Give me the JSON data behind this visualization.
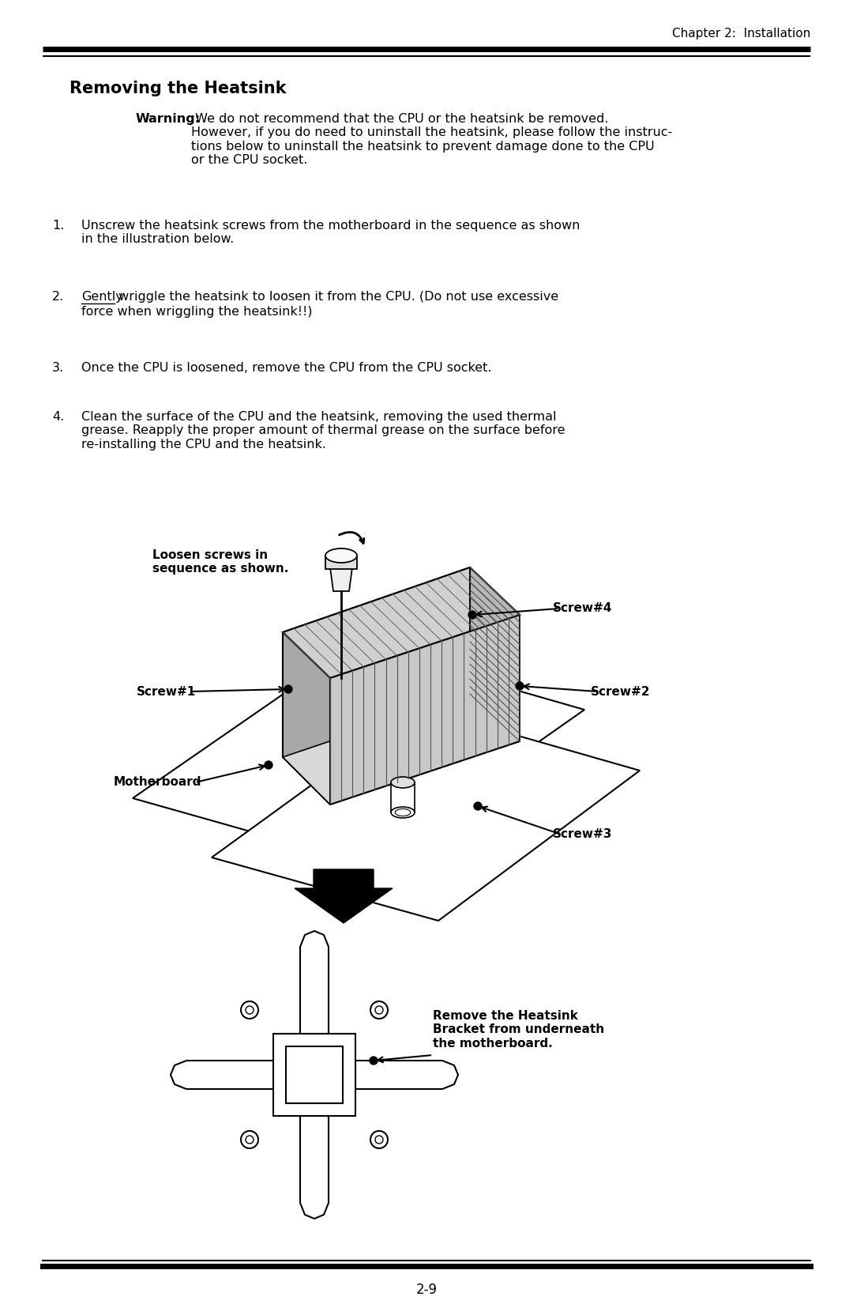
{
  "page_title": "Chapter 2:  Installation",
  "section_title": "Removing the Heatsink",
  "warning_label": "Warning:",
  "warning_text": " We do not recommend that the CPU or the heatsink be removed.\nHowever, if you do need to uninstall the heatsink, please follow the instruc-\ntions below to uninstall the heatsink to prevent damage done to the CPU\nor the CPU socket.",
  "steps": [
    "Unscrew the heatsink screws from the motherboard in the sequence as shown\nin the illustration below.",
    "Gently wriggle the heatsink to loosen it from the CPU. (Do not use excessive\nforce when wriggling the heatsink!!)",
    "Once the CPU is loosened, remove the CPU from the CPU socket.",
    "Clean the surface of the CPU and the heatsink, removing the used thermal\ngrease. Reapply the proper amount of thermal grease on the surface before\nre-installing the CPU and the heatsink."
  ],
  "label_loosen": "Loosen screws in\nsequence as shown.",
  "label_screw1": "Screw#1",
  "label_screw2": "Screw#2",
  "label_screw3": "Screw#3",
  "label_screw4": "Screw#4",
  "label_motherboard": "Motherboard",
  "label_remove_bracket": "Remove the Heatsink\nBracket from underneath\nthe motherboard.",
  "page_number": "2-9",
  "bg_color": "#ffffff",
  "text_color": "#000000"
}
